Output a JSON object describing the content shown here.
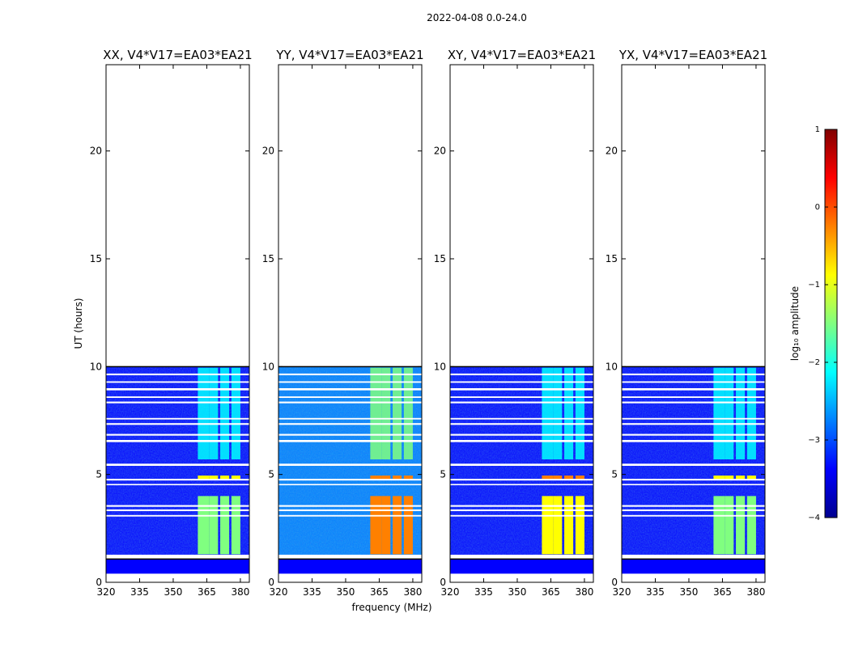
{
  "figure": {
    "suptitle": "2022-04-08 0.0-24.0",
    "xlabel": "frequency (MHz)",
    "ylabel": "UT (hours)",
    "colorbar_label": "log₁₀ amplitude",
    "colorbar_ticks": [
      "1",
      "0",
      "−1",
      "−2",
      "−3",
      "−4"
    ],
    "colormap": [
      "#00008f",
      "#0000ff",
      "#0080ff",
      "#00ffff",
      "#80ff80",
      "#ffff00",
      "#ff8000",
      "#ff0000",
      "#800000"
    ]
  },
  "chart_data": [
    {
      "type": "heatmap",
      "title": "XX, V4*V17=EA03*EA21",
      "xlabel": "",
      "ylabel": "UT (hours)",
      "xlim": [
        320,
        384
      ],
      "ylim": [
        0,
        24
      ],
      "xticks": [
        "320",
        "335",
        "350",
        "365",
        "380"
      ],
      "yticks": [
        "0",
        "5",
        "10",
        "15",
        "20"
      ],
      "data_hours": [
        0.3,
        10.0
      ],
      "rfi_bands_mhz": [
        [
          361,
          366
        ],
        [
          366,
          370
        ],
        [
          371,
          375
        ],
        [
          376,
          380
        ]
      ],
      "rfi_level_early": -1.5,
      "rfi_level_late": -2.2,
      "background_level": -3.2
    },
    {
      "type": "heatmap",
      "title": "YY, V4*V17=EA03*EA21",
      "xlabel": "frequency (MHz)",
      "ylabel": "",
      "xlim": [
        320,
        384
      ],
      "ylim": [
        0,
        24
      ],
      "xticks": [
        "320",
        "335",
        "350",
        "365",
        "380"
      ],
      "yticks": [
        "0",
        "5",
        "10",
        "15",
        "20"
      ],
      "data_hours": [
        0.3,
        10.0
      ],
      "rfi_bands_mhz": [
        [
          361,
          366
        ],
        [
          366,
          370
        ],
        [
          371,
          375
        ],
        [
          376,
          380
        ]
      ],
      "rfi_level_early": -0.4,
      "rfi_level_late": -1.6,
      "background_level": -3.0
    },
    {
      "type": "heatmap",
      "title": "XY, V4*V17=EA03*EA21",
      "xlabel": "",
      "ylabel": "",
      "xlim": [
        320,
        384
      ],
      "ylim": [
        0,
        24
      ],
      "xticks": [
        "320",
        "335",
        "350",
        "365",
        "380"
      ],
      "yticks": [
        "0",
        "5",
        "10",
        "15",
        "20"
      ],
      "data_hours": [
        0.3,
        10.0
      ],
      "rfi_bands_mhz": [
        [
          361,
          366
        ],
        [
          366,
          370
        ],
        [
          371,
          375
        ],
        [
          376,
          380
        ]
      ],
      "rfi_level_early": -0.9,
      "rfi_level_late": -2.0,
      "background_level": -3.2
    },
    {
      "type": "heatmap",
      "title": "YX, V4*V17=EA03*EA21",
      "xlabel": "",
      "ylabel": "",
      "xlim": [
        320,
        384
      ],
      "ylim": [
        0,
        24
      ],
      "xticks": [
        "320",
        "335",
        "350",
        "365",
        "380"
      ],
      "yticks": [
        "0",
        "5",
        "10",
        "15",
        "20"
      ],
      "data_hours": [
        0.3,
        10.0
      ],
      "rfi_bands_mhz": [
        [
          361,
          366
        ],
        [
          366,
          370
        ],
        [
          371,
          375
        ],
        [
          376,
          380
        ]
      ],
      "rfi_level_early": -1.5,
      "rfi_level_late": -2.2,
      "background_level": -3.2
    }
  ],
  "colorbar": {
    "min": -4,
    "max": 1
  }
}
